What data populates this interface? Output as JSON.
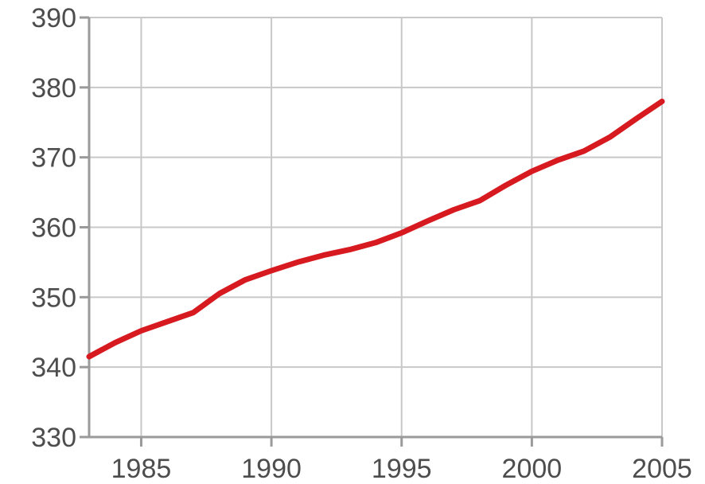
{
  "chart_data": {
    "type": "line",
    "title": "",
    "xlabel": "",
    "ylabel": "",
    "xlim": [
      1983,
      2005
    ],
    "ylim": [
      330,
      390
    ],
    "x_ticks": [
      1985,
      1990,
      1995,
      2000,
      2005
    ],
    "y_ticks": [
      330,
      340,
      350,
      360,
      370,
      380,
      390
    ],
    "grid": true,
    "legend": "none",
    "series": [
      {
        "color": "#d71920",
        "x": [
          1983,
          1984,
          1985,
          1986,
          1987,
          1988,
          1989,
          1990,
          1991,
          1992,
          1993,
          1994,
          1995,
          1996,
          1997,
          1998,
          1999,
          2000,
          2001,
          2002,
          2003,
          2004,
          2005
        ],
        "y": [
          341.5,
          343.5,
          345.2,
          346.5,
          347.8,
          350.5,
          352.5,
          353.8,
          355.0,
          356.0,
          356.8,
          357.8,
          359.2,
          360.9,
          362.5,
          363.8,
          366.0,
          368.0,
          369.6,
          370.9,
          372.9,
          375.5,
          378.0
        ]
      }
    ]
  }
}
